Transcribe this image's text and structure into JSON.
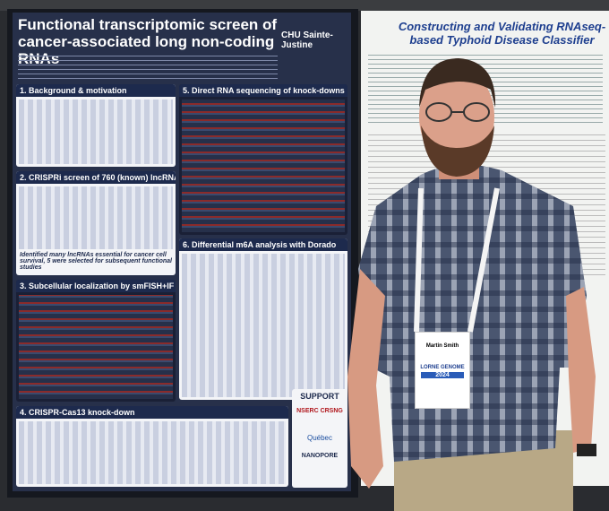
{
  "poster": {
    "title": "Functional transcriptomic screen of cancer-associated long non-coding RNAs",
    "institution": "CHU Sainte-Justine",
    "sections": [
      {
        "heading": "1. Background & motivation"
      },
      {
        "heading": "2. CRISPRi screen of 760 (known) lncRNAs"
      },
      {
        "heading": "3. Subcellular localization by smFISH+IF"
      },
      {
        "heading": "4. CRISPR-Cas13 knock-down"
      },
      {
        "heading": "5. Direct RNA sequencing of knock-downs"
      },
      {
        "heading": "6. Differential m6A analysis with Dorado"
      }
    ],
    "highlight": "Identified many lncRNAs essential for cancer cell survival, 5 were selected for subsequent functional studies",
    "support": {
      "heading": "SUPPORT",
      "sponsors": [
        "NSERC CRSNG",
        "Québec",
        "NANOPORE"
      ]
    }
  },
  "second_poster": {
    "title": "Constructing and Validating RNAseq-based Typhoid Disease Classifier"
  },
  "badge": {
    "name": "Martin Smith",
    "event": "LORNE GENOME",
    "year": "2024"
  }
}
